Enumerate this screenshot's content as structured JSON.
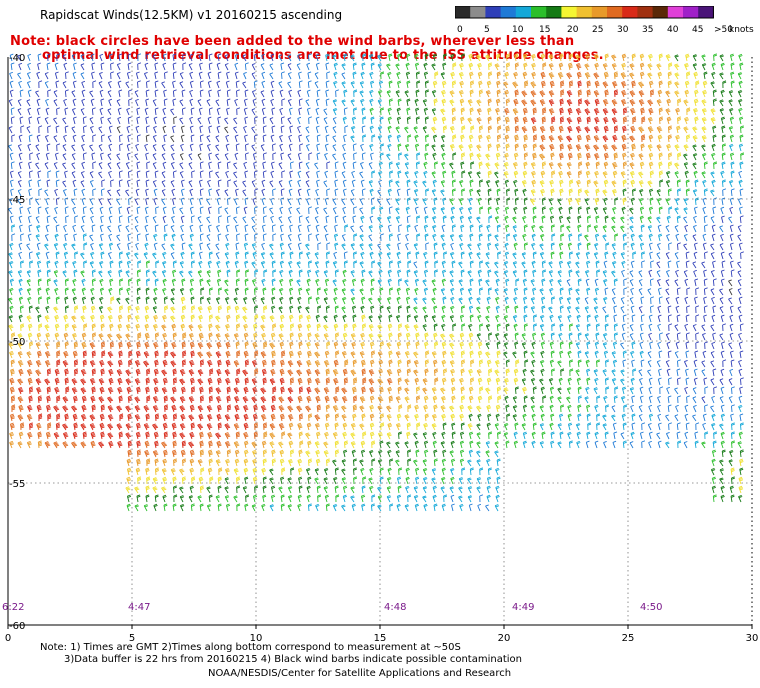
{
  "title": "Rapidscat Winds(12.5KM) v1 20160215 ascending",
  "note": {
    "line1": "Note: black circles have been added to the wind barbs, wherever less than",
    "line2": "optimal wind retrieval conditions are met due to the ISS attitude changes."
  },
  "colorbar": {
    "unit": "knots",
    "labels": [
      "0",
      "5",
      "10",
      "15",
      "20",
      "25",
      "30",
      "35",
      "40",
      "45",
      ">50"
    ],
    "colors": [
      "#2a2a2a",
      "#8c8c8c",
      "#2f3fb8",
      "#1f7ad6",
      "#14a8d8",
      "#2bbf2b",
      "#157a15",
      "#f5f532",
      "#f0c030",
      "#e89a2a",
      "#e06a20",
      "#d82a18",
      "#a03010",
      "#5a2808",
      "#e040d8",
      "#a020c8",
      "#4a1478"
    ]
  },
  "axes": {
    "y_labels": [
      "-40",
      "-45",
      "-50",
      "-55",
      "-60"
    ],
    "x_labels": [
      "0",
      "5",
      "10",
      "15",
      "20",
      "25",
      "30"
    ]
  },
  "times": [
    "6:22",
    "4:47",
    "4:48",
    "4:49",
    "4:50"
  ],
  "footer": {
    "line1": "Note: 1) Times are GMT 2)Times along bottom correspond to measurement at ~50S",
    "line2": "3)Data buffer is 22 hrs from 20160215 4) Black wind barbs indicate possible contamination",
    "line3": "NOAA/NESDIS/Center for Satellite Applications and Research"
  }
}
